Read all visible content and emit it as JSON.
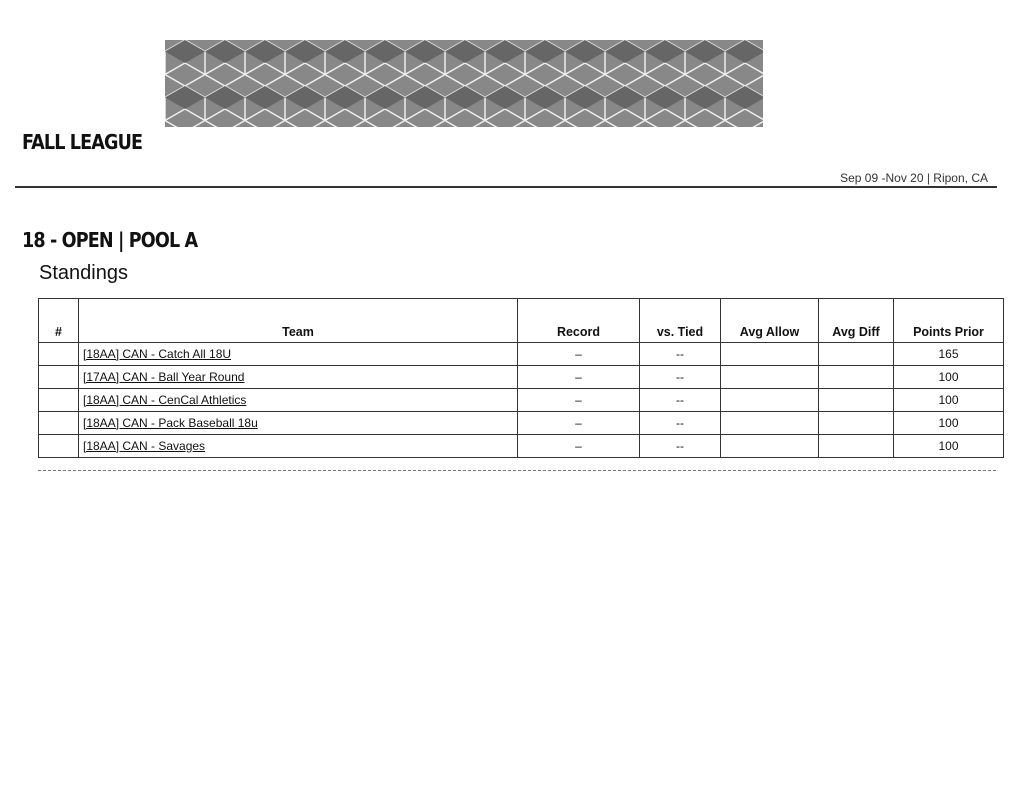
{
  "header": {
    "title": "FALL LEAGUE",
    "dates": "Sep 09 -Nov 20 | Ripon, CA"
  },
  "section": {
    "pool": "18 - OPEN | POOL A",
    "subtitle": "Standings"
  },
  "table": {
    "columns": [
      "#",
      "Team",
      "Record",
      "vs. Tied",
      "Avg Allow",
      "Avg Diff",
      "Points Prior"
    ],
    "rows": [
      {
        "rank": "",
        "team": "[18AA] CAN - Catch All 18U",
        "record": "–",
        "tied": "--",
        "allow": "",
        "diff": "",
        "points": "165"
      },
      {
        "rank": "",
        "team": "[17AA] CAN - Ball Year Round",
        "record": "–",
        "tied": "--",
        "allow": "",
        "diff": "",
        "points": "100"
      },
      {
        "rank": "",
        "team": "[18AA] CAN - CenCal Athletics",
        "record": "–",
        "tied": "--",
        "allow": "",
        "diff": "",
        "points": "100"
      },
      {
        "rank": "",
        "team": "[18AA] CAN - Pack Baseball 18u",
        "record": "–",
        "tied": "--",
        "allow": "",
        "diff": "",
        "points": "100"
      },
      {
        "rank": "",
        "team": "[18AA] CAN - Savages",
        "record": "–",
        "tied": "--",
        "allow": "",
        "diff": "",
        "points": "100"
      }
    ]
  }
}
